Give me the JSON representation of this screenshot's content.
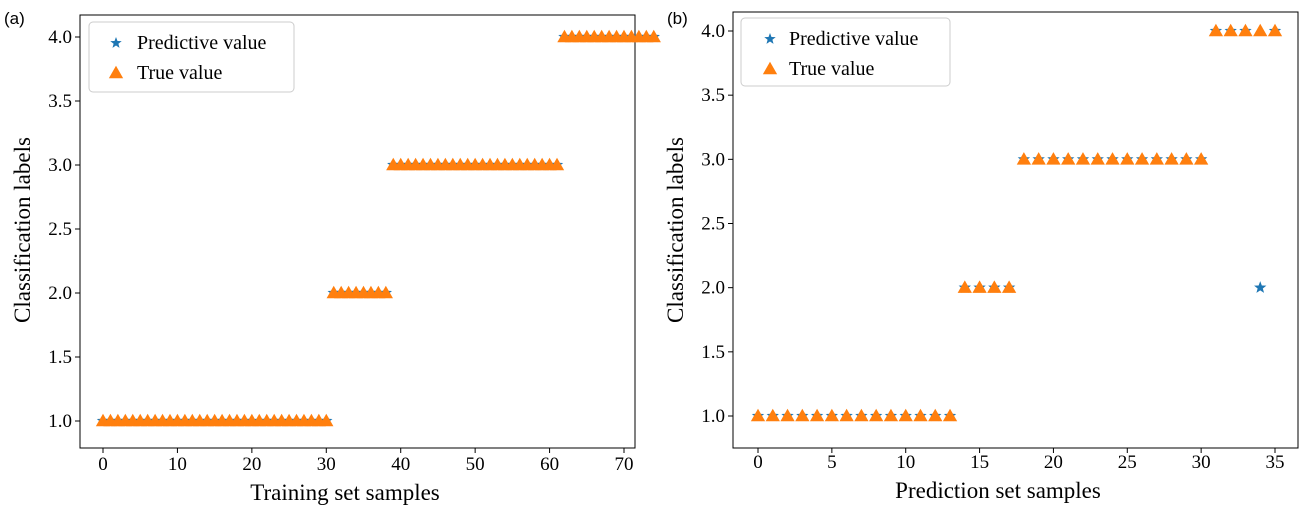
{
  "figure": {
    "panels": [
      "(a)",
      "(b)"
    ]
  },
  "chart_data": [
    {
      "type": "scatter",
      "panel_label": "(a)",
      "xlabel": "Training set samples",
      "ylabel": "Classification labels",
      "xlim": [
        -3,
        77
      ],
      "ylim": [
        0.9,
        4.15
      ],
      "xticks": [
        0,
        10,
        20,
        30,
        40,
        50,
        60,
        70
      ],
      "yticks": [
        1.0,
        1.5,
        2.0,
        2.5,
        3.0,
        3.5,
        4.0
      ],
      "xtick_labels": [
        "0",
        "10",
        "20",
        "30",
        "40",
        "50",
        "60",
        "70"
      ],
      "ytick_labels": [
        "1.0",
        "1.5",
        "2.0",
        "2.5",
        "3.0",
        "3.5",
        "4.0"
      ],
      "grid": false,
      "legend": "top-left",
      "colors": {
        "Predictive value": "#1f77b4",
        "True value": "#ff7f0e"
      },
      "series": [
        {
          "name": "Predictive value",
          "marker": "star",
          "x": [
            0,
            1,
            2,
            3,
            4,
            5,
            6,
            7,
            8,
            9,
            10,
            11,
            12,
            13,
            14,
            15,
            16,
            17,
            18,
            19,
            20,
            21,
            22,
            23,
            24,
            25,
            26,
            27,
            28,
            29,
            30,
            31,
            32,
            33,
            34,
            35,
            36,
            37,
            38,
            39,
            40,
            41,
            42,
            43,
            44,
            45,
            46,
            47,
            48,
            49,
            50,
            51,
            52,
            53,
            54,
            55,
            56,
            57,
            58,
            59,
            60,
            61,
            62,
            63,
            64,
            65,
            66,
            67,
            68,
            69,
            70,
            71,
            72,
            73,
            74
          ],
          "y": [
            1,
            1,
            1,
            1,
            1,
            1,
            1,
            1,
            1,
            1,
            1,
            1,
            1,
            1,
            1,
            1,
            1,
            1,
            1,
            1,
            1,
            1,
            1,
            1,
            1,
            1,
            1,
            1,
            1,
            1,
            1,
            2,
            2,
            2,
            2,
            2,
            2,
            2,
            2,
            3,
            3,
            3,
            3,
            3,
            3,
            3,
            3,
            3,
            3,
            3,
            3,
            3,
            3,
            3,
            3,
            3,
            3,
            3,
            3,
            3,
            3,
            3,
            4,
            4,
            4,
            4,
            4,
            4,
            4,
            4,
            4,
            4,
            4,
            4,
            4
          ]
        },
        {
          "name": "True value",
          "marker": "triangle",
          "x": [
            0,
            1,
            2,
            3,
            4,
            5,
            6,
            7,
            8,
            9,
            10,
            11,
            12,
            13,
            14,
            15,
            16,
            17,
            18,
            19,
            20,
            21,
            22,
            23,
            24,
            25,
            26,
            27,
            28,
            29,
            30,
            31,
            32,
            33,
            34,
            35,
            36,
            37,
            38,
            39,
            40,
            41,
            42,
            43,
            44,
            45,
            46,
            47,
            48,
            49,
            50,
            51,
            52,
            53,
            54,
            55,
            56,
            57,
            58,
            59,
            60,
            61,
            62,
            63,
            64,
            65,
            66,
            67,
            68,
            69,
            70,
            71,
            72,
            73,
            74
          ],
          "y": [
            1,
            1,
            1,
            1,
            1,
            1,
            1,
            1,
            1,
            1,
            1,
            1,
            1,
            1,
            1,
            1,
            1,
            1,
            1,
            1,
            1,
            1,
            1,
            1,
            1,
            1,
            1,
            1,
            1,
            1,
            1,
            2,
            2,
            2,
            2,
            2,
            2,
            2,
            2,
            3,
            3,
            3,
            3,
            3,
            3,
            3,
            3,
            3,
            3,
            3,
            3,
            3,
            3,
            3,
            3,
            3,
            3,
            3,
            3,
            3,
            3,
            3,
            4,
            4,
            4,
            4,
            4,
            4,
            4,
            4,
            4,
            4,
            4,
            4,
            4
          ]
        }
      ]
    },
    {
      "type": "scatter",
      "panel_label": "(b)",
      "xlabel": "Prediction set samples",
      "ylabel": "Classification labels",
      "xlim": [
        -1.5,
        36.5
      ],
      "ylim": [
        0.9,
        4.1
      ],
      "xticks": [
        0,
        5,
        10,
        15,
        20,
        25,
        30,
        35
      ],
      "yticks": [
        1.0,
        1.5,
        2.0,
        2.5,
        3.0,
        3.5,
        4.0
      ],
      "xtick_labels": [
        "0",
        "5",
        "10",
        "15",
        "20",
        "25",
        "30",
        "35"
      ],
      "ytick_labels": [
        "1.0",
        "1.5",
        "2.0",
        "2.5",
        "3.0",
        "3.5",
        "4.0"
      ],
      "grid": false,
      "legend": "top-left",
      "colors": {
        "Predictive value": "#1f77b4",
        "True value": "#ff7f0e"
      },
      "series": [
        {
          "name": "Predictive value",
          "marker": "star",
          "x": [
            0,
            1,
            2,
            3,
            4,
            5,
            6,
            7,
            8,
            9,
            10,
            11,
            12,
            13,
            14,
            15,
            16,
            17,
            18,
            19,
            20,
            21,
            22,
            23,
            24,
            25,
            26,
            27,
            28,
            29,
            30,
            31,
            32,
            33,
            34,
            35
          ],
          "y": [
            1,
            1,
            1,
            1,
            1,
            1,
            1,
            1,
            1,
            1,
            1,
            1,
            1,
            1,
            2,
            2,
            2,
            2,
            3,
            3,
            3,
            3,
            3,
            3,
            3,
            3,
            3,
            3,
            3,
            3,
            3,
            4,
            4,
            4,
            2,
            4
          ]
        },
        {
          "name": "True value",
          "marker": "triangle",
          "x": [
            0,
            1,
            2,
            3,
            4,
            5,
            6,
            7,
            8,
            9,
            10,
            11,
            12,
            13,
            14,
            15,
            16,
            17,
            18,
            19,
            20,
            21,
            22,
            23,
            24,
            25,
            26,
            27,
            28,
            29,
            30,
            31,
            32,
            33,
            34,
            35
          ],
          "y": [
            1,
            1,
            1,
            1,
            1,
            1,
            1,
            1,
            1,
            1,
            1,
            1,
            1,
            1,
            2,
            2,
            2,
            2,
            3,
            3,
            3,
            3,
            3,
            3,
            3,
            3,
            3,
            3,
            3,
            3,
            3,
            4,
            4,
            4,
            4,
            4
          ]
        }
      ]
    }
  ]
}
